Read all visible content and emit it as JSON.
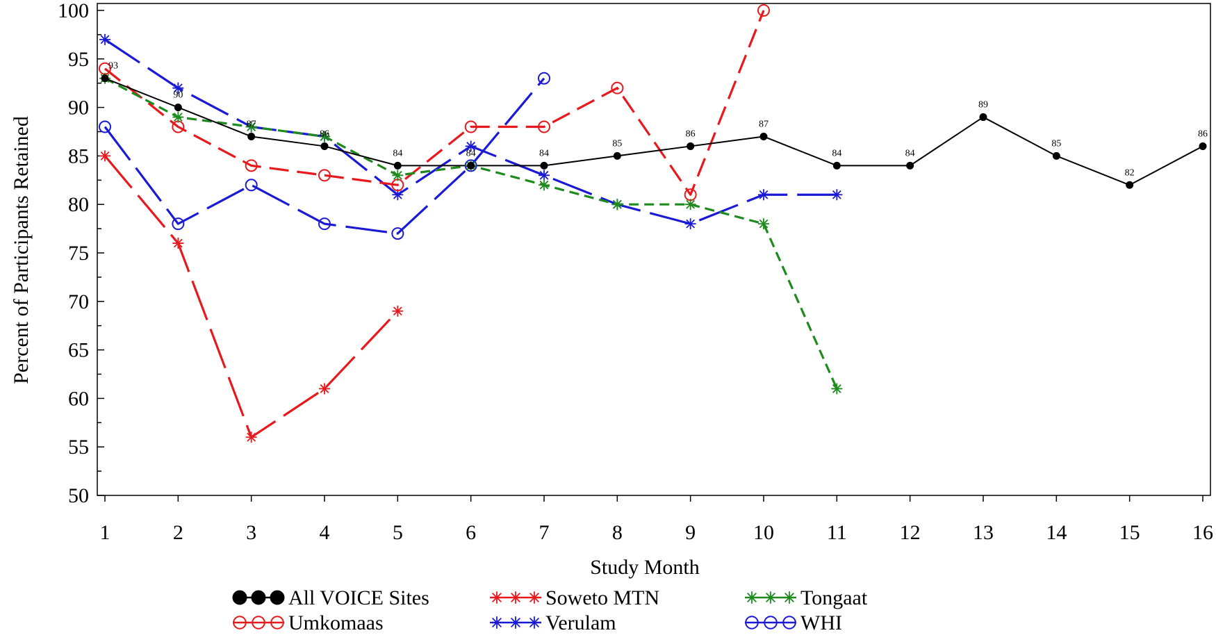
{
  "chart_data": {
    "type": "line",
    "xlabel": "Study Month",
    "ylabel": "Percent of Participants Retained",
    "xlim": [
      1,
      16
    ],
    "ylim": [
      50,
      100
    ],
    "x_ticks": [
      1,
      2,
      3,
      4,
      5,
      6,
      7,
      8,
      9,
      10,
      11,
      12,
      13,
      14,
      15,
      16
    ],
    "y_ticks": [
      50,
      55,
      60,
      65,
      70,
      75,
      80,
      85,
      90,
      95,
      100
    ],
    "grid": false,
    "legend_position": "bottom",
    "series": [
      {
        "name": "All VOICE Sites",
        "color": "#000000",
        "line_style": "solid",
        "marker": "filled-circle",
        "x": [
          1,
          2,
          3,
          4,
          5,
          6,
          7,
          8,
          9,
          10,
          11,
          12,
          13,
          14,
          15,
          16
        ],
        "y": [
          93,
          90,
          87,
          86,
          84,
          84,
          84,
          85,
          86,
          87,
          84,
          84,
          89,
          85,
          82,
          86
        ],
        "data_labels": [
          "93",
          "90",
          "87",
          "86",
          "84",
          "84",
          "84",
          "85",
          "86",
          "87",
          "84",
          "84",
          "89",
          "85",
          "82",
          "86"
        ]
      },
      {
        "name": "Soweto MTN",
        "color": "#e8191c",
        "line_style": "long-dash",
        "marker": "star",
        "x": [
          1,
          2,
          3,
          4,
          5
        ],
        "y": [
          85,
          76,
          56,
          61,
          69
        ]
      },
      {
        "name": "Tongaat",
        "color": "#1e8a1e",
        "line_style": "short-dash",
        "marker": "star",
        "x": [
          1,
          2,
          3,
          4,
          5,
          6,
          7,
          8,
          9,
          10,
          11
        ],
        "y": [
          93,
          89,
          88,
          87,
          83,
          84,
          82,
          80,
          80,
          78,
          61
        ]
      },
      {
        "name": "Umkomaas",
        "color": "#e8191c",
        "line_style": "dash",
        "marker": "open-circle",
        "x": [
          1,
          2,
          3,
          4,
          5,
          6,
          7,
          8,
          9,
          10
        ],
        "y": [
          94,
          88,
          84,
          83,
          82,
          88,
          88,
          92,
          81,
          100
        ]
      },
      {
        "name": "Verulam",
        "color": "#1a1ad6",
        "line_style": "long-dash",
        "marker": "star",
        "x": [
          1,
          2,
          3,
          4,
          5,
          6,
          7,
          8,
          9,
          10,
          11
        ],
        "y": [
          97,
          92,
          88,
          87,
          81,
          86,
          83,
          80,
          78,
          81,
          81
        ]
      },
      {
        "name": "WHI",
        "color": "#1a1ad6",
        "line_style": "long-dash",
        "marker": "open-circle",
        "x": [
          1,
          2,
          3,
          4,
          5,
          6,
          7
        ],
        "y": [
          88,
          78,
          82,
          78,
          77,
          84,
          93
        ]
      }
    ],
    "legend": [
      "All VOICE Sites",
      "Soweto MTN",
      "Tongaat",
      "Umkomaas",
      "Verulam",
      "WHI"
    ]
  }
}
